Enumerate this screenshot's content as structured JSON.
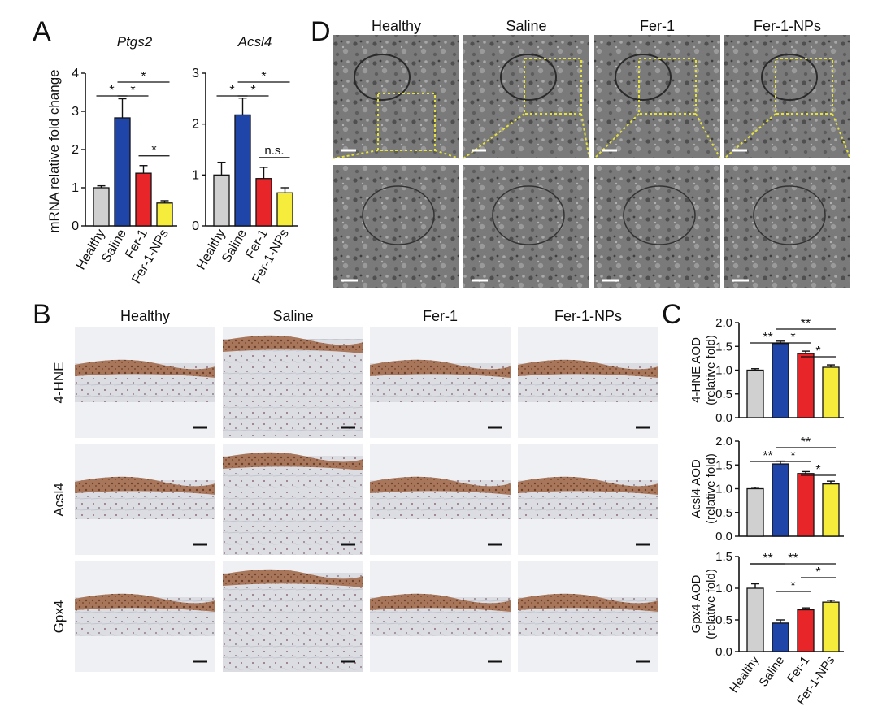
{
  "panel_labels": {
    "A": "A",
    "B": "B",
    "C": "C",
    "D": "D"
  },
  "groups": [
    "Healthy",
    "Saline",
    "Fer-1",
    "Fer-1-NPs"
  ],
  "colors": {
    "Healthy": "#d0d0d0",
    "Saline": "#1f45a8",
    "Fer-1": "#e8262a",
    "Fer-1-NPs": "#f5ec3c"
  },
  "panel_a": {
    "ylabel": "mRNA relative fold change",
    "charts": [
      {
        "title": "Ptgs2",
        "ylim": [
          0,
          4
        ],
        "ticks": [
          "0",
          "1",
          "2",
          "3",
          "4"
        ]
      },
      {
        "title": "Acsl4",
        "ylim": [
          0,
          3
        ],
        "ticks": [
          "0",
          "1",
          "2",
          "3"
        ]
      }
    ]
  },
  "panel_b": {
    "columns": [
      "Healthy",
      "Saline",
      "Fer-1",
      "Fer-1-NPs"
    ],
    "rows": [
      "4-HNE",
      "Acsl4",
      "Gpx4"
    ]
  },
  "panel_c": {
    "charts": [
      {
        "ylabel1": "4-HNE AOD",
        "ylabel2": "(relative fold)",
        "ylim": [
          0,
          2
        ],
        "ticks": [
          "0.0",
          "0.5",
          "1.0",
          "1.5",
          "2.0"
        ]
      },
      {
        "ylabel1": "Acsl4 AOD",
        "ylabel2": "(relative fold)",
        "ylim": [
          0,
          2
        ],
        "ticks": [
          "0.0",
          "0.5",
          "1.0",
          "1.5",
          "2.0"
        ]
      },
      {
        "ylabel1": "Gpx4 AOD",
        "ylabel2": "(relative fold)",
        "ylim": [
          0,
          1.5
        ],
        "ticks": [
          "0.0",
          "0.5",
          "1.0",
          "1.5"
        ]
      }
    ]
  },
  "panel_d": {
    "columns": [
      "Healthy",
      "Saline",
      "Fer-1",
      "Fer-1-NPs"
    ]
  },
  "chart_data": [
    {
      "type": "bar",
      "title": "Ptgs2",
      "ylabel": "mRNA relative fold change",
      "categories": [
        "Healthy",
        "Saline",
        "Fer-1",
        "Fer-1-NPs"
      ],
      "values": [
        1.0,
        2.83,
        1.38,
        0.6
      ],
      "errors": [
        0.05,
        0.5,
        0.2,
        0.06
      ],
      "ylim": [
        0,
        4
      ],
      "significance": [
        {
          "from": 0,
          "to": 1,
          "label": "*"
        },
        {
          "from": 1,
          "to": 2,
          "label": "*"
        },
        {
          "from": 1,
          "to": 3,
          "label": "*"
        },
        {
          "from": 2,
          "to": 3,
          "label": "*"
        }
      ]
    },
    {
      "type": "bar",
      "title": "Acsl4",
      "ylabel": "mRNA relative fold change",
      "categories": [
        "Healthy",
        "Saline",
        "Fer-1",
        "Fer-1-NPs"
      ],
      "values": [
        1.0,
        2.18,
        0.93,
        0.65
      ],
      "errors": [
        0.25,
        0.33,
        0.22,
        0.1
      ],
      "ylim": [
        0,
        3
      ],
      "significance": [
        {
          "from": 0,
          "to": 1,
          "label": "*"
        },
        {
          "from": 1,
          "to": 2,
          "label": "*"
        },
        {
          "from": 1,
          "to": 3,
          "label": "*"
        },
        {
          "from": 2,
          "to": 3,
          "label": "n.s."
        }
      ]
    },
    {
      "type": "bar",
      "ylabel": "4-HNE AOD (relative fold)",
      "categories": [
        "Healthy",
        "Saline",
        "Fer-1",
        "Fer-1-NPs"
      ],
      "values": [
        1.0,
        1.56,
        1.35,
        1.06
      ],
      "errors": [
        0.03,
        0.05,
        0.05,
        0.05
      ],
      "ylim": [
        0,
        2
      ],
      "significance": [
        {
          "from": 0,
          "to": 1,
          "label": "**"
        },
        {
          "from": 1,
          "to": 2,
          "label": "*"
        },
        {
          "from": 1,
          "to": 3,
          "label": "**"
        },
        {
          "from": 2,
          "to": 3,
          "label": "*"
        }
      ]
    },
    {
      "type": "bar",
      "ylabel": "Acsl4 AOD (relative fold)",
      "categories": [
        "Healthy",
        "Saline",
        "Fer-1",
        "Fer-1-NPs"
      ],
      "values": [
        1.0,
        1.52,
        1.32,
        1.1
      ],
      "errors": [
        0.03,
        0.06,
        0.04,
        0.06
      ],
      "ylim": [
        0,
        2
      ],
      "significance": [
        {
          "from": 0,
          "to": 1,
          "label": "**"
        },
        {
          "from": 1,
          "to": 2,
          "label": "*"
        },
        {
          "from": 1,
          "to": 3,
          "label": "**"
        },
        {
          "from": 2,
          "to": 3,
          "label": "*"
        }
      ]
    },
    {
      "type": "bar",
      "ylabel": "Gpx4 AOD (relative fold)",
      "categories": [
        "Healthy",
        "Saline",
        "Fer-1",
        "Fer-1-NPs"
      ],
      "values": [
        1.0,
        0.45,
        0.66,
        0.78
      ],
      "errors": [
        0.07,
        0.05,
        0.03,
        0.03
      ],
      "ylim": [
        0,
        1.5
      ],
      "significance": [
        {
          "from": 0,
          "to": 1,
          "label": "**"
        },
        {
          "from": 0,
          "to": 3,
          "label": "**"
        },
        {
          "from": 1,
          "to": 2,
          "label": "*"
        },
        {
          "from": 2,
          "to": 3,
          "label": "*"
        }
      ]
    }
  ]
}
